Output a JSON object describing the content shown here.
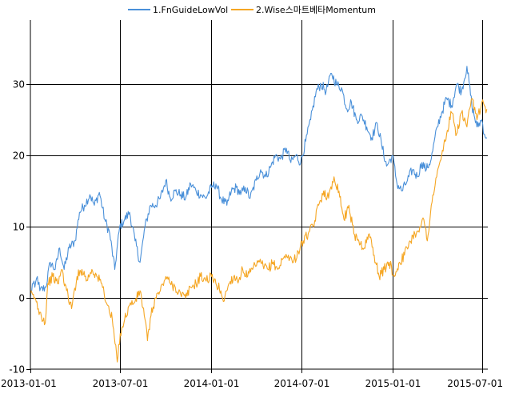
{
  "chart_data": {
    "type": "line",
    "title": "",
    "xlabel": "",
    "ylabel": "",
    "x_ticks": [
      "2013-01-01",
      "2013-07-01",
      "2014-01-01",
      "2014-07-01",
      "2015-01-01",
      "2015-07-01"
    ],
    "y_ticks": [
      -10,
      0,
      10,
      20,
      30
    ],
    "xlim": [
      "2013-01-01",
      "2015-07-12"
    ],
    "ylim": [
      -10,
      39
    ],
    "grid": true,
    "legend_position": "top-center",
    "series": [
      {
        "name": "1.FnGuideLowVol",
        "color": "#4a90d9",
        "points": [
          [
            "2013-01-01",
            0
          ],
          [
            "2013-01-05",
            2
          ],
          [
            "2013-01-10",
            1.5
          ],
          [
            "2013-01-15",
            3
          ],
          [
            "2013-01-20",
            1
          ],
          [
            "2013-02-01",
            1.5
          ],
          [
            "2013-02-10",
            5
          ],
          [
            "2013-02-20",
            4
          ],
          [
            "2013-03-01",
            7
          ],
          [
            "2013-03-10",
            4
          ],
          [
            "2013-03-20",
            7
          ],
          [
            "2013-04-01",
            8
          ],
          [
            "2013-04-10",
            12
          ],
          [
            "2013-04-20",
            13
          ],
          [
            "2013-05-01",
            14.5
          ],
          [
            "2013-05-10",
            13
          ],
          [
            "2013-05-20",
            14.8
          ],
          [
            "2013-05-31",
            11
          ],
          [
            "2013-06-10",
            9
          ],
          [
            "2013-06-20",
            4
          ],
          [
            "2013-06-30",
            10
          ],
          [
            "2013-07-10",
            11
          ],
          [
            "2013-07-20",
            12
          ],
          [
            "2013-07-31",
            8
          ],
          [
            "2013-08-10",
            5
          ],
          [
            "2013-08-20",
            10
          ],
          [
            "2013-08-31",
            13
          ],
          [
            "2013-09-10",
            13
          ],
          [
            "2013-09-20",
            14
          ],
          [
            "2013-10-01",
            16.5
          ],
          [
            "2013-10-10",
            14
          ],
          [
            "2013-10-20",
            15
          ],
          [
            "2013-10-31",
            14.5
          ],
          [
            "2013-11-10",
            14
          ],
          [
            "2013-11-20",
            16
          ],
          [
            "2013-12-01",
            15
          ],
          [
            "2013-12-10",
            14.5
          ],
          [
            "2013-12-20",
            14
          ],
          [
            "2014-01-01",
            15.5
          ],
          [
            "2014-01-10",
            16
          ],
          [
            "2014-01-20",
            14
          ],
          [
            "2014-02-01",
            13
          ],
          [
            "2014-02-10",
            15
          ],
          [
            "2014-02-20",
            15.5
          ],
          [
            "2014-03-01",
            14.5
          ],
          [
            "2014-03-10",
            15.5
          ],
          [
            "2014-03-20",
            14
          ],
          [
            "2014-04-01",
            16.5
          ],
          [
            "2014-04-10",
            18
          ],
          [
            "2014-04-20",
            17
          ],
          [
            "2014-05-01",
            18.5
          ],
          [
            "2014-05-10",
            20
          ],
          [
            "2014-05-20",
            19.5
          ],
          [
            "2014-06-01",
            21
          ],
          [
            "2014-06-10",
            19
          ],
          [
            "2014-06-20",
            20
          ],
          [
            "2014-06-30",
            19
          ],
          [
            "2014-07-10",
            22
          ],
          [
            "2014-07-20",
            25
          ],
          [
            "2014-07-31",
            29
          ],
          [
            "2014-08-10",
            30
          ],
          [
            "2014-08-20",
            29
          ],
          [
            "2014-08-31",
            31.5
          ],
          [
            "2014-09-10",
            30
          ],
          [
            "2014-09-20",
            29.5
          ],
          [
            "2014-10-01",
            26.5
          ],
          [
            "2014-10-10",
            27.5
          ],
          [
            "2014-10-20",
            25
          ],
          [
            "2014-11-01",
            25.5
          ],
          [
            "2014-11-10",
            24
          ],
          [
            "2014-11-20",
            22.5
          ],
          [
            "2014-12-01",
            24.5
          ],
          [
            "2014-12-10",
            21.5
          ],
          [
            "2014-12-20",
            18.5
          ],
          [
            "2015-01-01",
            20
          ],
          [
            "2015-01-10",
            16
          ],
          [
            "2015-01-20",
            15
          ],
          [
            "2015-01-31",
            16.5
          ],
          [
            "2015-02-10",
            18
          ],
          [
            "2015-02-20",
            17
          ],
          [
            "2015-03-01",
            19
          ],
          [
            "2015-03-10",
            18
          ],
          [
            "2015-03-20",
            19.5
          ],
          [
            "2015-04-01",
            24
          ],
          [
            "2015-04-10",
            26
          ],
          [
            "2015-04-20",
            28
          ],
          [
            "2015-04-30",
            27
          ],
          [
            "2015-05-10",
            30
          ],
          [
            "2015-05-20",
            29
          ],
          [
            "2015-05-31",
            32.5
          ],
          [
            "2015-06-10",
            27
          ],
          [
            "2015-06-20",
            24
          ],
          [
            "2015-06-30",
            25
          ],
          [
            "2015-07-05",
            23
          ],
          [
            "2015-07-10",
            22.5
          ]
        ]
      },
      {
        "name": "2.Wise스마트베타Momentum",
        "color": "#f5a623",
        "points": [
          [
            "2013-01-01",
            0.5
          ],
          [
            "2013-01-10",
            0
          ],
          [
            "2013-01-20",
            -2
          ],
          [
            "2013-01-31",
            -3.5
          ],
          [
            "2013-02-05",
            2
          ],
          [
            "2013-02-15",
            3
          ],
          [
            "2013-02-25",
            2
          ],
          [
            "2013-03-05",
            4
          ],
          [
            "2013-03-15",
            1
          ],
          [
            "2013-03-25",
            -1.5
          ],
          [
            "2013-04-05",
            3
          ],
          [
            "2013-04-15",
            4
          ],
          [
            "2013-04-25",
            2.5
          ],
          [
            "2013-05-05",
            4
          ],
          [
            "2013-05-15",
            3
          ],
          [
            "2013-05-25",
            2
          ],
          [
            "2013-06-05",
            -1
          ],
          [
            "2013-06-15",
            -3
          ],
          [
            "2013-06-25",
            -9
          ],
          [
            "2013-07-01",
            -5
          ],
          [
            "2013-07-10",
            -3
          ],
          [
            "2013-07-20",
            -1
          ],
          [
            "2013-07-31",
            -0.5
          ],
          [
            "2013-08-10",
            1
          ],
          [
            "2013-08-20",
            -3
          ],
          [
            "2013-08-25",
            -6
          ],
          [
            "2013-09-01",
            -2.5
          ],
          [
            "2013-09-10",
            0
          ],
          [
            "2013-09-20",
            1
          ],
          [
            "2013-10-01",
            3
          ],
          [
            "2013-10-10",
            2
          ],
          [
            "2013-10-20",
            1.5
          ],
          [
            "2013-10-31",
            0.5
          ],
          [
            "2013-11-10",
            0
          ],
          [
            "2013-11-20",
            1.5
          ],
          [
            "2013-12-01",
            2
          ],
          [
            "2013-12-10",
            3
          ],
          [
            "2013-12-20",
            2.5
          ],
          [
            "2014-01-01",
            3
          ],
          [
            "2014-01-10",
            2
          ],
          [
            "2014-01-20",
            1
          ],
          [
            "2014-01-25",
            -0.5
          ],
          [
            "2014-02-05",
            2
          ],
          [
            "2014-02-15",
            3
          ],
          [
            "2014-02-25",
            2.5
          ],
          [
            "2014-03-05",
            4
          ],
          [
            "2014-03-15",
            3
          ],
          [
            "2014-03-25",
            4
          ],
          [
            "2014-04-05",
            5
          ],
          [
            "2014-04-15",
            4.5
          ],
          [
            "2014-04-25",
            4
          ],
          [
            "2014-05-05",
            5
          ],
          [
            "2014-05-15",
            4
          ],
          [
            "2014-05-25",
            5.5
          ],
          [
            "2014-06-05",
            6
          ],
          [
            "2014-06-15",
            5
          ],
          [
            "2014-06-25",
            6.5
          ],
          [
            "2014-07-05",
            8
          ],
          [
            "2014-07-15",
            9
          ],
          [
            "2014-07-25",
            10
          ],
          [
            "2014-08-05",
            13
          ],
          [
            "2014-08-15",
            15
          ],
          [
            "2014-08-25",
            14
          ],
          [
            "2014-09-05",
            17
          ],
          [
            "2014-09-15",
            15
          ],
          [
            "2014-09-25",
            11
          ],
          [
            "2014-10-05",
            13
          ],
          [
            "2014-10-15",
            9
          ],
          [
            "2014-10-25",
            8
          ],
          [
            "2014-11-05",
            7
          ],
          [
            "2014-11-15",
            9
          ],
          [
            "2014-11-25",
            6
          ],
          [
            "2014-12-05",
            3
          ],
          [
            "2014-12-15",
            4
          ],
          [
            "2014-12-25",
            5
          ],
          [
            "2015-01-05",
            3
          ],
          [
            "2015-01-15",
            5
          ],
          [
            "2015-01-25",
            6
          ],
          [
            "2015-02-05",
            8
          ],
          [
            "2015-02-15",
            9
          ],
          [
            "2015-02-25",
            10
          ],
          [
            "2015-03-05",
            11
          ],
          [
            "2015-03-12",
            8
          ],
          [
            "2015-03-20",
            13
          ],
          [
            "2015-03-31",
            17
          ],
          [
            "2015-04-10",
            20
          ],
          [
            "2015-04-20",
            23
          ],
          [
            "2015-04-30",
            26
          ],
          [
            "2015-05-10",
            23
          ],
          [
            "2015-05-20",
            26
          ],
          [
            "2015-05-31",
            24
          ],
          [
            "2015-06-10",
            28
          ],
          [
            "2015-06-20",
            25
          ],
          [
            "2015-06-30",
            27.5
          ],
          [
            "2015-07-05",
            27
          ],
          [
            "2015-07-10",
            26.5
          ]
        ]
      }
    ]
  }
}
